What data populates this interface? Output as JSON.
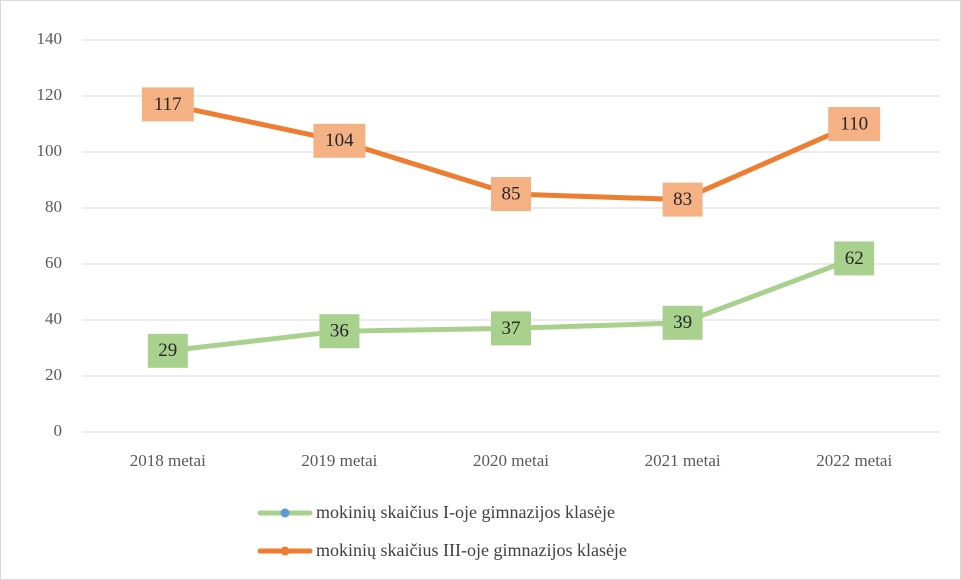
{
  "chart_data": {
    "type": "line",
    "categories": [
      "2018 metai",
      "2019 metai",
      "2020 metai",
      "2021 metai",
      "2022 metai"
    ],
    "series": [
      {
        "name": "mokinių skaičius I-oje gimnazijos klasėje",
        "color": "#a9d18e",
        "marker_color": "#5b9bd5",
        "label_fill": "#a9d18e",
        "values": [
          29,
          36,
          37,
          39,
          62
        ]
      },
      {
        "name": "mokinių skaičius III-oje gimnazijos klasėje",
        "color": "#ed7d31",
        "marker_color": "#ed7d31",
        "label_fill": "#f4b183",
        "values": [
          117,
          104,
          85,
          83,
          110
        ]
      }
    ],
    "ylim": [
      0,
      140
    ],
    "yticks": [
      0,
      20,
      40,
      60,
      80,
      100,
      120,
      140
    ],
    "grid": true,
    "legend": "bottom"
  }
}
